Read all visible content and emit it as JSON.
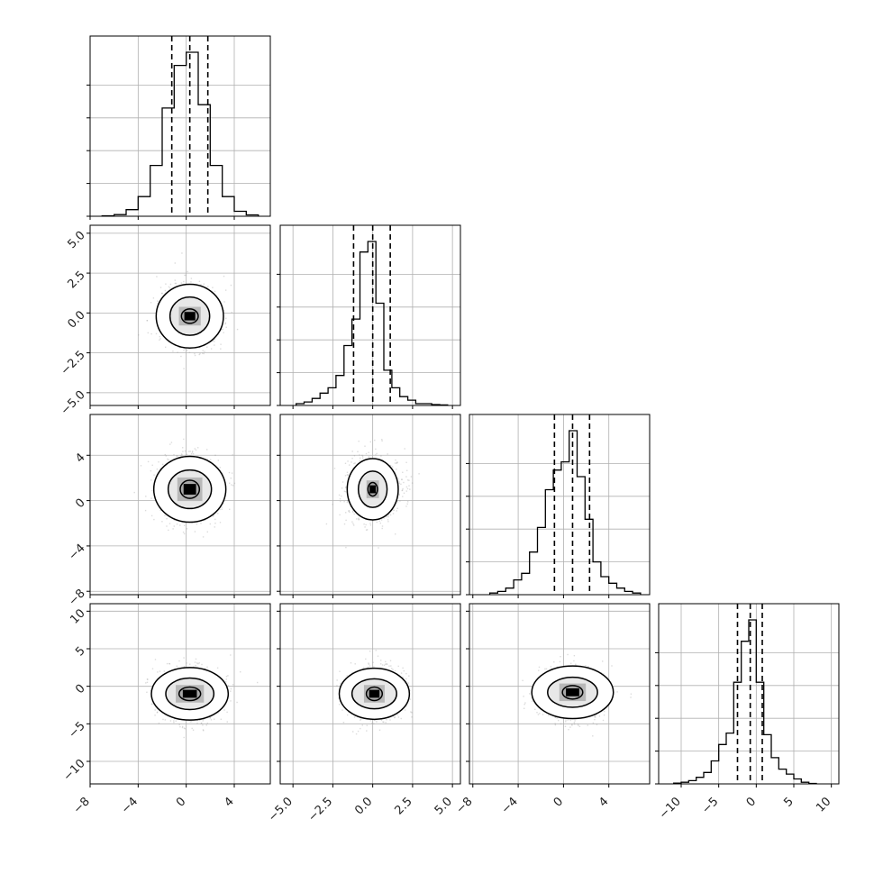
{
  "chart_data": {
    "type": "corner",
    "grid": true,
    "colors": {
      "line": "#000000",
      "grid": "#b0b0b0",
      "scatter": "#9a9a9a"
    },
    "parameters": [
      {
        "range": [
          -8,
          7
        ],
        "quantiles": [
          -1.2,
          0.3,
          1.8
        ]
      },
      {
        "range": [
          -5.8,
          5.5
        ],
        "quantiles": [
          -1.2,
          0.0,
          1.1
        ]
      },
      {
        "range": [
          -8.3,
          7.6
        ],
        "quantiles": [
          -0.8,
          0.8,
          2.3
        ]
      },
      {
        "range": [
          -13,
          11
        ],
        "quantiles": [
          -2.5,
          -0.8,
          0.8
        ]
      }
    ],
    "histograms": [
      {
        "bin_edges": [
          -7,
          -6,
          -5,
          -4,
          -3,
          -2,
          -1,
          0,
          1,
          2,
          3,
          4,
          5,
          6
        ],
        "counts": [
          0.003,
          0.01,
          0.04,
          0.12,
          0.31,
          0.66,
          0.92,
          1.0,
          0.68,
          0.31,
          0.12,
          0.03,
          0.008
        ]
      },
      {
        "bin_edges": [
          -4.8,
          -4.3,
          -3.8,
          -3.3,
          -2.8,
          -2.3,
          -1.8,
          -1.3,
          -0.8,
          -0.3,
          0.2,
          0.7,
          1.2,
          1.7,
          2.2,
          2.7,
          3.2,
          3.7,
          4.2,
          4.7
        ],
        "counts": [
          0.01,
          0.02,
          0.04,
          0.07,
          0.1,
          0.17,
          0.34,
          0.49,
          0.87,
          0.93,
          0.58,
          0.2,
          0.1,
          0.05,
          0.03,
          0.01,
          0.01,
          0.005,
          0.003
        ]
      },
      {
        "bin_edges": [
          -6.5,
          -5.8,
          -5.1,
          -4.4,
          -3.7,
          -3.0,
          -2.3,
          -1.6,
          -0.9,
          -0.2,
          0.5,
          1.2,
          1.9,
          2.6,
          3.3,
          4.0,
          4.7,
          5.4,
          6.1,
          6.8
        ],
        "counts": [
          0.01,
          0.02,
          0.04,
          0.09,
          0.13,
          0.26,
          0.41,
          0.64,
          0.76,
          0.81,
          1.0,
          0.72,
          0.46,
          0.2,
          0.11,
          0.07,
          0.04,
          0.02,
          0.01
        ]
      },
      {
        "bin_edges": [
          -11,
          -10,
          -9,
          -8,
          -7,
          -6,
          -5,
          -4,
          -3,
          -2,
          -1,
          0,
          1,
          2,
          3,
          4,
          5,
          6,
          7,
          8
        ],
        "counts": [
          0.005,
          0.01,
          0.02,
          0.04,
          0.07,
          0.14,
          0.24,
          0.31,
          0.62,
          0.87,
          1.0,
          0.62,
          0.3,
          0.16,
          0.09,
          0.06,
          0.03,
          0.01,
          0.003
        ]
      }
    ],
    "contours": [
      {
        "x": 0,
        "y": 1,
        "center": [
          0.3,
          -0.2
        ],
        "scatter_sd": [
          2.0,
          1.6
        ],
        "levels": [
          [
            0.7,
            0.45
          ],
          [
            1.65,
            1.2
          ],
          [
            2.8,
            2.0
          ]
        ]
      },
      {
        "x": 0,
        "y": 2,
        "center": [
          0.3,
          1.0
        ],
        "scatter_sd": [
          2.0,
          2.3
        ],
        "levels": [
          [
            0.8,
            0.8
          ],
          [
            1.8,
            1.7
          ],
          [
            3.0,
            2.9
          ]
        ]
      },
      {
        "x": 1,
        "y": 2,
        "center": [
          0.0,
          1.0
        ],
        "scatter_sd": [
          1.4,
          2.3
        ],
        "levels": [
          [
            0.3,
            0.6
          ],
          [
            0.9,
            1.6
          ],
          [
            1.6,
            2.7
          ]
        ]
      },
      {
        "x": 0,
        "y": 3,
        "center": [
          0.3,
          -1.0
        ],
        "scatter_sd": [
          2.1,
          2.8
        ],
        "levels": [
          [
            0.9,
            0.9
          ],
          [
            2.0,
            2.1
          ],
          [
            3.2,
            3.5
          ]
        ]
      },
      {
        "x": 1,
        "y": 3,
        "center": [
          0.1,
          -1.0
        ],
        "scatter_sd": [
          1.5,
          2.8
        ],
        "levels": [
          [
            0.5,
            0.9
          ],
          [
            1.4,
            2.0
          ],
          [
            2.2,
            3.4
          ]
        ]
      },
      {
        "x": 2,
        "y": 3,
        "center": [
          0.8,
          -0.8
        ],
        "scatter_sd": [
          2.3,
          2.8
        ],
        "levels": [
          [
            0.9,
            0.9
          ],
          [
            2.2,
            2.0
          ],
          [
            3.6,
            3.5
          ]
        ]
      }
    ],
    "ticks": {
      "x": [
        {
          "values": [
            -8,
            -4,
            0,
            4
          ],
          "labels": [
            "−8",
            "−4",
            "0",
            "4"
          ]
        },
        {
          "values": [
            -5,
            -2.5,
            0,
            2.5,
            5
          ],
          "labels": [
            "−5.0",
            "−2.5",
            "0.0",
            "2.5",
            "5.0"
          ]
        },
        {
          "values": [
            -8,
            -4,
            0,
            4
          ],
          "labels": [
            "−8",
            "−4",
            "0",
            "4"
          ]
        },
        {
          "values": [
            -10,
            -5,
            0,
            5,
            10
          ],
          "labels": [
            "−10",
            "−5",
            "0",
            "5",
            "10"
          ]
        }
      ],
      "y": [
        null,
        {
          "values": [
            -5,
            -2.5,
            0,
            2.5,
            5
          ],
          "labels": [
            "−5.0",
            "−2.5",
            "0.0",
            "2.5",
            "5.0"
          ]
        },
        {
          "values": [
            -8,
            -4,
            0,
            4
          ],
          "labels": [
            "−8",
            "−4",
            "0",
            "4"
          ]
        },
        {
          "values": [
            -10,
            -5,
            0,
            5,
            10
          ],
          "labels": [
            "−10",
            "−5",
            "0",
            "5",
            "10"
          ]
        }
      ]
    }
  }
}
